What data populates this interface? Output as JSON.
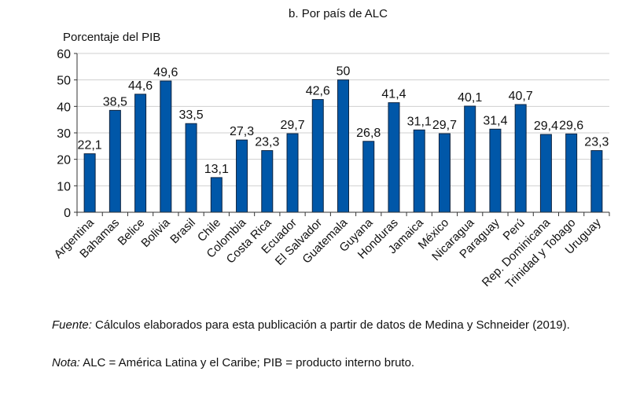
{
  "chart_data": {
    "type": "bar",
    "title": "b. Por país de ALC",
    "ylabel": "Porcentaje del PIB",
    "xlabel": "",
    "ylim": [
      0,
      60
    ],
    "yticks": [
      0,
      10,
      20,
      30,
      40,
      50,
      60
    ],
    "grid": true,
    "bar_color": "#0057a8",
    "categories": [
      "Argentina",
      "Bahamas",
      "Belice",
      "Bolivia",
      "Brasil",
      "Chile",
      "Colombia",
      "Costa Rica",
      "Ecuador",
      "El Salvador",
      "Guatemala",
      "Guyana",
      "Honduras",
      "Jamaica",
      "México",
      "Nicaragua",
      "Paraguay",
      "Perú",
      "Rep. Dominicana",
      "Trinidad y Tobago",
      "Uruguay"
    ],
    "values": [
      22.1,
      38.5,
      44.6,
      49.6,
      33.5,
      13.1,
      27.3,
      23.3,
      29.7,
      42.6,
      50,
      26.8,
      41.4,
      31.1,
      29.7,
      40.1,
      31.4,
      40.7,
      29.4,
      29.6,
      23.3
    ],
    "data_labels": [
      "22,1",
      "38,5",
      "44,6",
      "49,6",
      "33,5",
      "13,1",
      "27,3",
      "23,3",
      "29,7",
      "42,6",
      "50",
      "26,8",
      "41,4",
      "31,1",
      "29,7",
      "40,1",
      "31,4",
      "40,7",
      "29,4",
      "29,6",
      "23,3"
    ]
  },
  "notes": {
    "source_label": "Fuente:",
    "source_text": " Cálculos elaborados para esta publicación a partir de datos de Medina y Schneider (2019).",
    "note_label": "Nota:",
    "note_text": " ALC = América Latina y el Caribe; PIB = producto interno bruto."
  }
}
